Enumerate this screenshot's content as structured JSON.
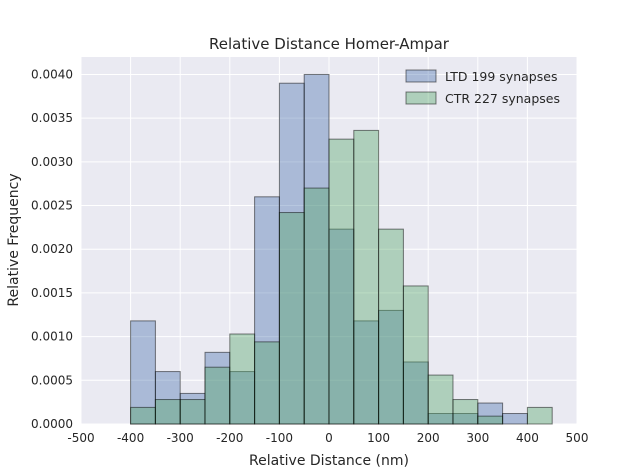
{
  "chart_data": {
    "type": "bar",
    "title": "Relative Distance Homer-Ampar",
    "xlabel": "Relative Distance (nm)",
    "ylabel": "Relative Frequency",
    "xlim": [
      -500,
      500
    ],
    "ylim": [
      0,
      0.0042
    ],
    "xticks": [
      "-500",
      "-400",
      "-300",
      "-200",
      "-100",
      "0",
      "100",
      "200",
      "300",
      "400",
      "500"
    ],
    "yticks": [
      "0.0000",
      "0.0005",
      "0.0010",
      "0.0015",
      "0.0020",
      "0.0025",
      "0.0030",
      "0.0035",
      "0.0040"
    ],
    "grid": true,
    "legend_position": "top-right",
    "bin_edges": [
      -400,
      -350,
      -300,
      -250,
      -200,
      -150,
      -100,
      -50,
      0,
      50,
      100,
      150,
      200,
      250,
      300,
      350,
      400,
      450
    ],
    "series": [
      {
        "name": "LTD 199 synapses",
        "color": "#4c72b0",
        "values": [
          0.00118,
          0.0006,
          0.00035,
          0.00082,
          0.0006,
          0.0026,
          0.0039,
          0.004,
          0.00223,
          0.00118,
          0.0013,
          0.00071,
          0.00012,
          0.00012,
          0.00024,
          0.00012,
          0
        ]
      },
      {
        "name": "CTR 227 synapses",
        "color": "#55a868",
        "values": [
          0.00019,
          0.00028,
          0.00028,
          0.00065,
          0.00103,
          0.00094,
          0.00242,
          0.0027,
          0.00326,
          0.00336,
          0.00223,
          0.00158,
          0.00056,
          0.00028,
          9e-05,
          0,
          0.00019
        ]
      }
    ]
  }
}
